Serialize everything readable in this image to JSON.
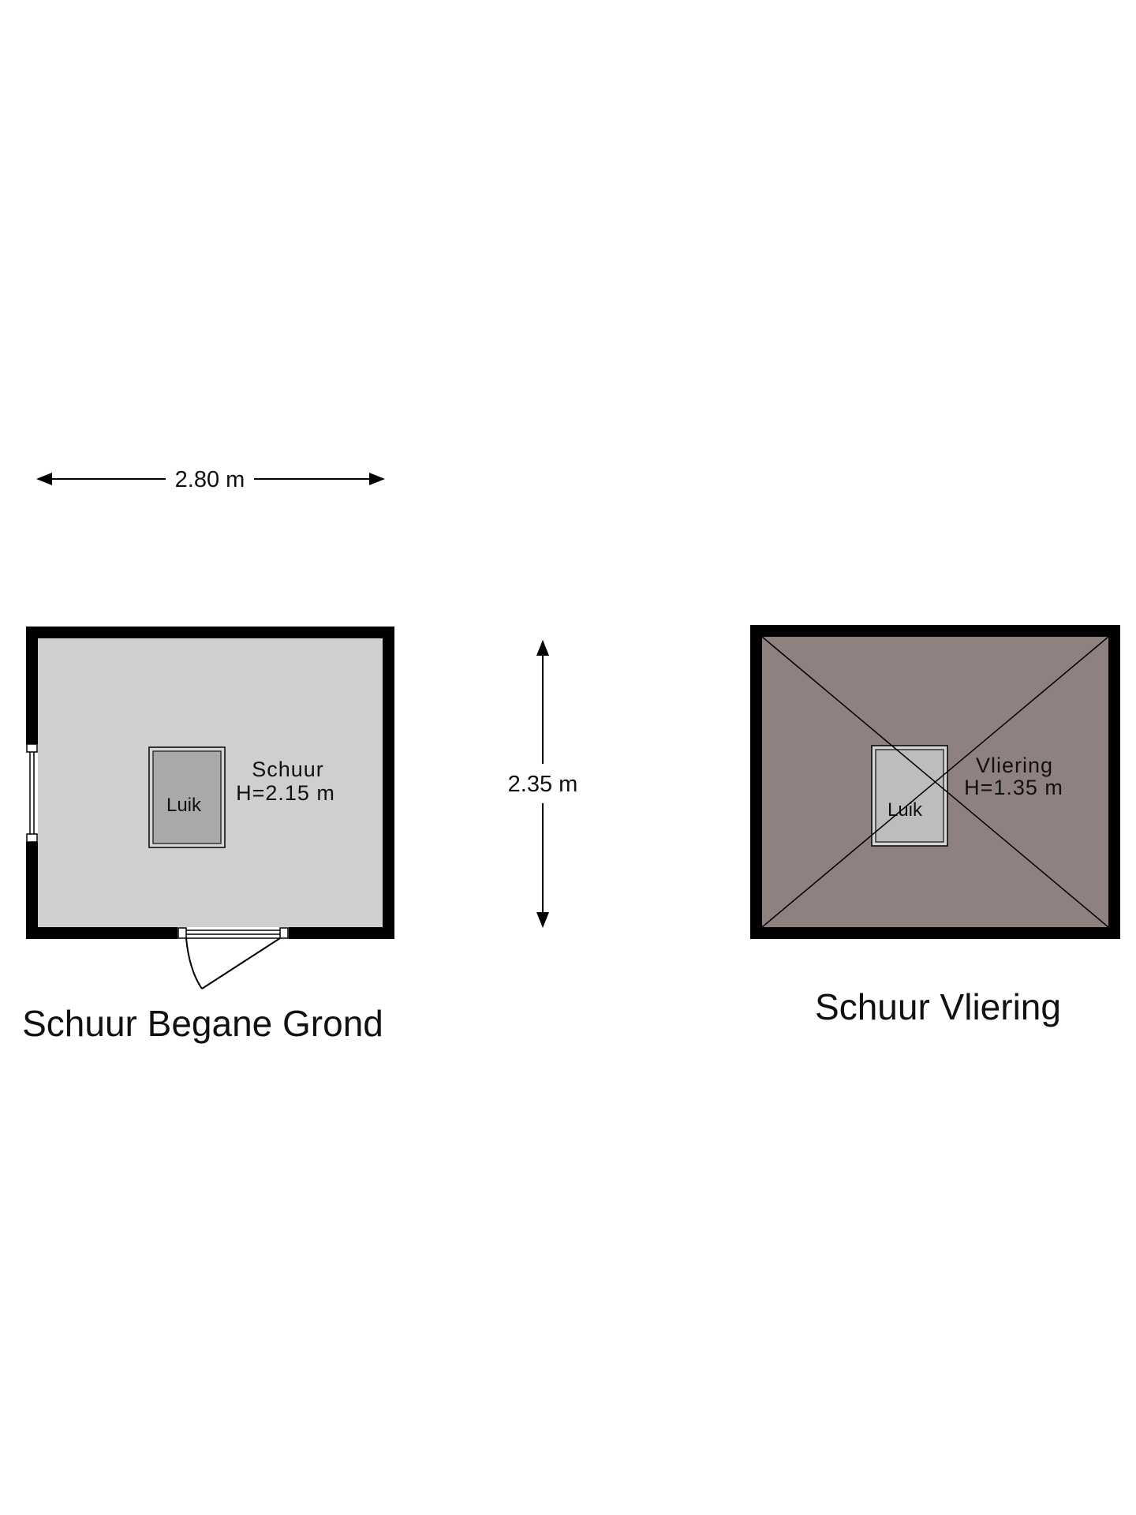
{
  "dimensions": {
    "width": "2.80 m",
    "depth": "2.35 m"
  },
  "ground_floor": {
    "title": "Schuur Begane Grond",
    "room_name": "Schuur",
    "room_height": "H=2.15 m",
    "hatch_label": "Luik"
  },
  "attic": {
    "title": "Schuur Vliering",
    "room_name": "Vliering",
    "room_height": "H=1.35 m",
    "hatch_label": "Luik"
  },
  "colors": {
    "ground_floor_fill": "#cfcfcf",
    "attic_fill": "#8e8180",
    "hatch_fill": "#bdbdbd",
    "wall": "#000000"
  }
}
